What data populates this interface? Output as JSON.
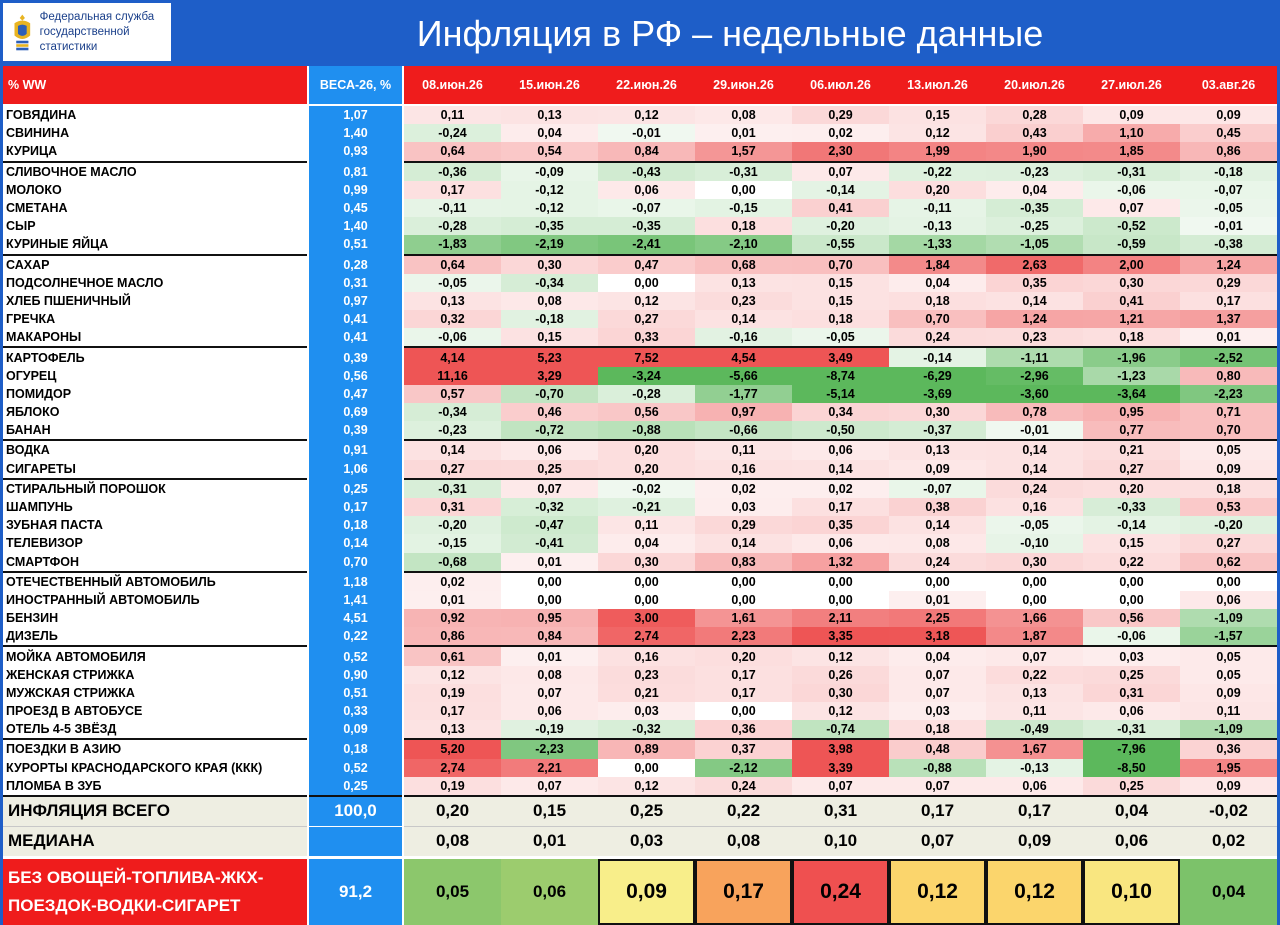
{
  "header": {
    "org_line1": "Федеральная служба",
    "org_line2": "государственной статистики",
    "title": "Инфляция в РФ – недельные данные"
  },
  "chart_data": {
    "type": "table",
    "title": "Инфляция в РФ – недельные данные",
    "corner_label": "% WW",
    "weights_header": "ВЕСА-26, %",
    "columns": [
      "08.июн.26",
      "15.июн.26",
      "22.июн.26",
      "29.июн.26",
      "06.июл.26",
      "13.июл.26",
      "20.июл.26",
      "27.июл.26",
      "03.авг.26"
    ],
    "rows": [
      {
        "label": "ГОВЯДИНА",
        "weight": "1,07",
        "values": [
          0.11,
          0.13,
          0.12,
          0.08,
          0.29,
          0.15,
          0.28,
          0.09,
          0.09
        ]
      },
      {
        "label": "СВИНИНА",
        "weight": "1,40",
        "values": [
          -0.24,
          0.04,
          -0.01,
          0.01,
          0.02,
          0.12,
          0.43,
          1.1,
          0.45
        ]
      },
      {
        "label": "КУРИЦА",
        "weight": "0,93",
        "values": [
          0.64,
          0.54,
          0.84,
          1.57,
          2.3,
          1.99,
          1.9,
          1.85,
          0.86
        ]
      },
      {
        "label": "СЛИВОЧНОЕ МАСЛО",
        "weight": "0,81",
        "values": [
          -0.36,
          -0.09,
          -0.43,
          -0.31,
          0.07,
          -0.22,
          -0.23,
          -0.31,
          -0.18
        ]
      },
      {
        "label": "МОЛОКО",
        "weight": "0,99",
        "values": [
          0.17,
          -0.12,
          0.06,
          0.0,
          -0.14,
          0.2,
          0.04,
          -0.06,
          -0.07
        ]
      },
      {
        "label": "СМЕТАНА",
        "weight": "0,45",
        "values": [
          -0.11,
          -0.12,
          -0.07,
          -0.15,
          0.41,
          -0.11,
          -0.35,
          0.07,
          -0.05
        ]
      },
      {
        "label": "СЫР",
        "weight": "1,40",
        "values": [
          -0.28,
          -0.35,
          -0.35,
          0.18,
          -0.2,
          -0.13,
          -0.25,
          -0.52,
          -0.01
        ]
      },
      {
        "label": "КУРИНЫЕ ЯЙЦА",
        "weight": "0,51",
        "values": [
          -1.83,
          -2.19,
          -2.41,
          -2.1,
          -0.55,
          -1.33,
          -1.05,
          -0.59,
          -0.38
        ]
      },
      {
        "label": "САХАР",
        "weight": "0,28",
        "values": [
          0.64,
          0.3,
          0.47,
          0.68,
          0.7,
          1.84,
          2.63,
          2.0,
          1.24
        ]
      },
      {
        "label": "ПОДСОЛНЕЧНОЕ МАСЛО",
        "weight": "0,31",
        "values": [
          -0.05,
          -0.34,
          0.0,
          0.13,
          0.15,
          0.04,
          0.35,
          0.3,
          0.29
        ]
      },
      {
        "label": "ХЛЕБ ПШЕНИЧНЫЙ",
        "weight": "0,97",
        "values": [
          0.13,
          0.08,
          0.12,
          0.23,
          0.15,
          0.18,
          0.14,
          0.41,
          0.17
        ]
      },
      {
        "label": "ГРЕЧКА",
        "weight": "0,41",
        "values": [
          0.32,
          -0.18,
          0.27,
          0.14,
          0.18,
          0.7,
          1.24,
          1.21,
          1.37
        ]
      },
      {
        "label": "МАКАРОНЫ",
        "weight": "0,41",
        "values": [
          -0.06,
          0.15,
          0.33,
          -0.16,
          -0.05,
          0.24,
          0.23,
          0.18,
          0.01
        ]
      },
      {
        "label": "КАРТОФЕЛЬ",
        "weight": "0,39",
        "values": [
          4.14,
          5.23,
          7.52,
          4.54,
          3.49,
          -0.14,
          -1.11,
          -1.96,
          -2.52
        ]
      },
      {
        "label": "ОГУРЕЦ",
        "weight": "0,56",
        "values": [
          11.16,
          3.29,
          -3.24,
          -5.66,
          -8.74,
          -6.29,
          -2.96,
          -1.23,
          0.8
        ]
      },
      {
        "label": "ПОМИДОР",
        "weight": "0,47",
        "values": [
          0.57,
          -0.7,
          -0.28,
          -1.77,
          -5.14,
          -3.69,
          -3.6,
          -3.64,
          -2.23
        ]
      },
      {
        "label": "ЯБЛОКО",
        "weight": "0,69",
        "values": [
          -0.34,
          0.46,
          0.56,
          0.97,
          0.34,
          0.3,
          0.78,
          0.95,
          0.71
        ]
      },
      {
        "label": "БАНАН",
        "weight": "0,39",
        "values": [
          -0.23,
          -0.72,
          -0.88,
          -0.66,
          -0.5,
          -0.37,
          -0.01,
          0.77,
          0.7
        ]
      },
      {
        "label": "ВОДКА",
        "weight": "0,91",
        "values": [
          0.14,
          0.06,
          0.2,
          0.11,
          0.06,
          0.13,
          0.14,
          0.21,
          0.05
        ]
      },
      {
        "label": "СИГАРЕТЫ",
        "weight": "1,06",
        "values": [
          0.27,
          0.25,
          0.2,
          0.16,
          0.14,
          0.09,
          0.14,
          0.27,
          0.09
        ]
      },
      {
        "label": "СТИРАЛЬНЫЙ ПОРОШОК",
        "weight": "0,25",
        "values": [
          -0.31,
          0.07,
          -0.02,
          0.02,
          0.02,
          -0.07,
          0.24,
          0.2,
          0.18
        ]
      },
      {
        "label": "ШАМПУНЬ",
        "weight": "0,17",
        "values": [
          0.31,
          -0.32,
          -0.21,
          0.03,
          0.17,
          0.38,
          0.16,
          -0.33,
          0.53
        ]
      },
      {
        "label": "ЗУБНАЯ ПАСТА",
        "weight": "0,18",
        "values": [
          -0.2,
          -0.47,
          0.11,
          0.29,
          0.35,
          0.14,
          -0.05,
          -0.14,
          -0.2
        ]
      },
      {
        "label": "ТЕЛЕВИЗОР",
        "weight": "0,14",
        "values": [
          -0.15,
          -0.41,
          0.04,
          0.14,
          0.06,
          0.08,
          -0.1,
          0.15,
          0.27
        ]
      },
      {
        "label": "СМАРТФОН",
        "weight": "0,70",
        "values": [
          -0.68,
          0.01,
          0.3,
          0.83,
          1.32,
          0.24,
          0.3,
          0.22,
          0.62
        ]
      },
      {
        "label": "ОТЕЧЕСТВЕННЫЙ АВТОМОБИЛЬ",
        "weight": "1,18",
        "values": [
          0.02,
          0.0,
          0.0,
          0.0,
          0.0,
          0.0,
          0.0,
          0.0,
          0.0
        ]
      },
      {
        "label": "ИНОСТРАННЫЙ АВТОМОБИЛЬ",
        "weight": "1,41",
        "values": [
          0.01,
          0.0,
          0.0,
          0.0,
          0.0,
          0.01,
          0.0,
          0.0,
          0.06
        ]
      },
      {
        "label": "БЕНЗИН",
        "weight": "4,51",
        "values": [
          0.92,
          0.95,
          3.0,
          1.61,
          2.11,
          2.25,
          1.66,
          0.56,
          -1.09
        ]
      },
      {
        "label": "ДИЗЕЛЬ",
        "weight": "0,22",
        "values": [
          0.86,
          0.84,
          2.74,
          2.23,
          3.35,
          3.18,
          1.87,
          -0.06,
          -1.57
        ]
      },
      {
        "label": "МОЙКА АВТОМОБИЛЯ",
        "weight": "0,52",
        "values": [
          0.61,
          0.01,
          0.16,
          0.2,
          0.12,
          0.04,
          0.07,
          0.03,
          0.05
        ]
      },
      {
        "label": "ЖЕНСКАЯ СТРИЖКА",
        "weight": "0,90",
        "values": [
          0.12,
          0.08,
          0.23,
          0.17,
          0.26,
          0.07,
          0.22,
          0.25,
          0.05
        ]
      },
      {
        "label": "МУЖСКАЯ СТРИЖКА",
        "weight": "0,51",
        "values": [
          0.19,
          0.07,
          0.21,
          0.17,
          0.3,
          0.07,
          0.13,
          0.31,
          0.09
        ]
      },
      {
        "label": "ПРОЕЗД В АВТОБУСЕ",
        "weight": "0,33",
        "values": [
          0.17,
          0.06,
          0.03,
          0.0,
          0.12,
          0.03,
          0.11,
          0.06,
          0.11
        ]
      },
      {
        "label": "ОТЕЛЬ 4-5 ЗВЁЗД",
        "weight": "0,09",
        "values": [
          0.13,
          -0.19,
          -0.32,
          0.36,
          -0.74,
          0.18,
          -0.49,
          -0.31,
          -1.09
        ]
      },
      {
        "label": "ПОЕЗДКИ В АЗИЮ",
        "weight": "0,18",
        "values": [
          5.2,
          -2.23,
          0.89,
          0.37,
          3.98,
          0.48,
          1.67,
          -7.96,
          0.36
        ]
      },
      {
        "label": "КУРОРТЫ КРАСНОДАРСКОГО КРАЯ (ККК)",
        "weight": "0,52",
        "values": [
          2.74,
          2.21,
          0.0,
          -2.12,
          3.39,
          -0.88,
          -0.13,
          -8.5,
          1.95
        ]
      },
      {
        "label": "ПЛОМБА В ЗУБ",
        "weight": "0,25",
        "values": [
          0.19,
          0.07,
          0.12,
          0.24,
          0.07,
          0.07,
          0.06,
          0.25,
          0.09
        ]
      }
    ],
    "summary_rows": [
      {
        "label": "ИНФЛЯЦИЯ ВСЕГО",
        "weight": "100,0",
        "values": [
          0.2,
          0.15,
          0.25,
          0.22,
          0.31,
          0.17,
          0.17,
          0.04,
          -0.02
        ]
      },
      {
        "label": "МЕДИАНА",
        "weight": "",
        "values": [
          0.08,
          0.01,
          0.03,
          0.08,
          0.1,
          0.07,
          0.09,
          0.06,
          0.02
        ]
      }
    ],
    "core_row": {
      "label": "БЕЗ ОВОЩЕЙ-ТОПЛИВА-ЖКХ-ПОЕЗДОК-ВОДКИ-СИГАРЕТ",
      "weight": "91,2",
      "values": [
        0.05,
        0.06,
        0.09,
        0.17,
        0.24,
        0.12,
        0.12,
        0.1,
        0.04
      ]
    },
    "colors": {
      "header_red": "#ef1c1c",
      "weights_blue": "#1f8ff0",
      "background_blue": "#1e5ec8",
      "positive": "#ee5555",
      "negative": "#5cb85c",
      "core_scale": [
        "#7cc26a",
        "#f8ee8a",
        "#f8a35c",
        "#ef5050"
      ]
    },
    "group_break_rows": [
      3,
      8,
      13,
      18,
      20,
      25,
      29,
      34,
      37
    ]
  }
}
